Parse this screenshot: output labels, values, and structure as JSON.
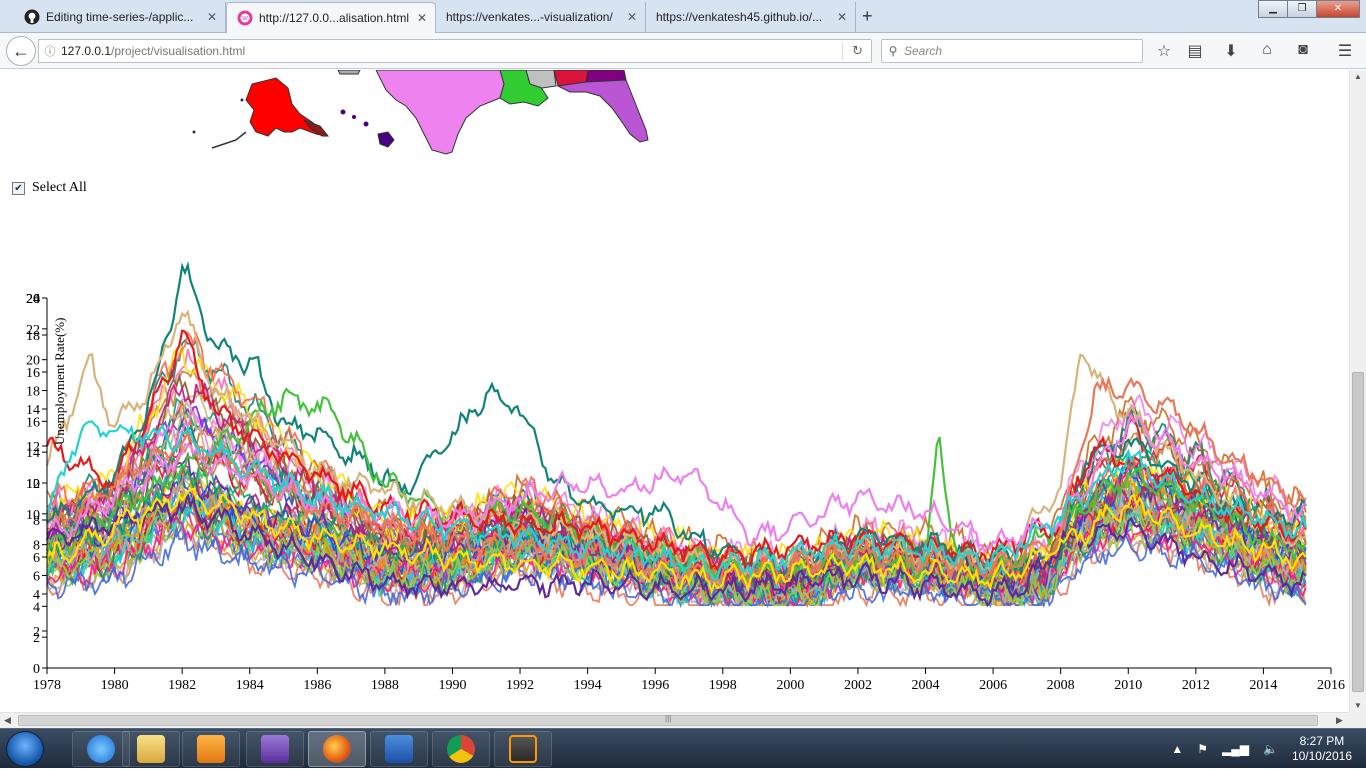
{
  "browser": {
    "tabs": [
      {
        "label": "Editing time-series-/applic...",
        "icon": "github-icon",
        "active": false
      },
      {
        "label": "http://127.0.0...alisation.html",
        "icon": "webstorm-icon",
        "active": true
      },
      {
        "label": "https://venkates...-visualization/",
        "icon": "",
        "active": false
      },
      {
        "label": "https://venkatesh45.github.io/...",
        "icon": "",
        "active": false
      }
    ],
    "new_tab": "+",
    "url_host": "127.0.0.1",
    "url_path": "/project/visualisation.html",
    "search_placeholder": "Search"
  },
  "page": {
    "select_all_label": "Select All",
    "select_all_checked": true
  },
  "chart_data": {
    "type": "line",
    "title": "",
    "ylabel": "Unemployment Rate(%)",
    "xlabel": "",
    "x_range": [
      1978,
      2016
    ],
    "x_ticks": [
      "1978",
      "1980",
      "1982",
      "1984",
      "1986",
      "1988",
      "1990",
      "1992",
      "1994",
      "1996",
      "1998",
      "2000",
      "2002",
      "2004",
      "2006",
      "2008",
      "2010",
      "2012",
      "2014",
      "2016"
    ],
    "y_axes": [
      {
        "ylim": [
          0,
          20
        ],
        "ticks": [
          "0",
          "2",
          "4",
          "6",
          "8",
          "10",
          "12",
          "14",
          "16",
          "18",
          "20"
        ]
      },
      {
        "ylim": [
          0,
          24
        ],
        "ticks": [
          "2",
          "4",
          "6",
          "8",
          "10",
          "12",
          "14",
          "16",
          "18",
          "20",
          "22",
          "24"
        ]
      },
      {
        "ylim": [
          0,
          26
        ],
        "ticks": [
          "26"
        ]
      }
    ],
    "series_count": 50,
    "series_anchors": {
      "x": [
        1978,
        1980,
        1982,
        1984,
        1986,
        1988,
        1990,
        1992,
        1994,
        1996,
        1998,
        2000,
        2002,
        2004,
        2006,
        2007.5,
        2008.5,
        2010,
        2012,
        2014,
        2015.3
      ],
      "profiles": [
        [
          6.0,
          6.8,
          9.6,
          7.6,
          6.8,
          5.4,
          5.6,
          7.0,
          6.0,
          5.2,
          4.5,
          4.2,
          5.6,
          5.4,
          4.6,
          4.6,
          7.4,
          9.2,
          8.0,
          6.0,
          5.2
        ],
        [
          8.0,
          9.4,
          16.2,
          13.2,
          9.8,
          7.0,
          7.4,
          8.8,
          7.2,
          6.4,
          5.4,
          5.0,
          6.6,
          6.0,
          5.0,
          5.0,
          8.2,
          9.8,
          9.0,
          7.6,
          6.6
        ],
        [
          5.0,
          5.6,
          8.2,
          6.8,
          6.0,
          4.8,
          5.0,
          6.2,
          5.6,
          4.8,
          4.2,
          3.8,
          5.2,
          5.0,
          4.4,
          4.4,
          6.6,
          8.0,
          7.0,
          5.2,
          4.6
        ],
        [
          7.0,
          8.0,
          11.2,
          9.4,
          8.4,
          6.6,
          6.4,
          7.8,
          6.8,
          5.8,
          5.0,
          4.6,
          6.0,
          5.8,
          5.0,
          5.0,
          8.8,
          11.8,
          10.2,
          8.0,
          7.0
        ]
      ]
    },
    "series_highlights": [
      {
        "color": "#12837a",
        "x": [
          1978,
          1980,
          1981.2,
          1982,
          1983,
          1984.2,
          1985,
          1986,
          1987.5,
          1988.5,
          1990,
          1991,
          1992,
          1993,
          1994,
          1996,
          1998,
          2000,
          2002,
          2004,
          2006,
          2008,
          2008.7,
          2010,
          2012,
          2014,
          2015.3
        ],
        "y": [
          7.8,
          10.4,
          15.0,
          21.8,
          17.4,
          16.2,
          13.2,
          12.6,
          11.0,
          9.6,
          12.4,
          14.8,
          14.0,
          10.2,
          8.8,
          8.4,
          6.2,
          5.6,
          7.2,
          6.8,
          5.8,
          6.0,
          11.4,
          12.2,
          10.0,
          7.8,
          8.6
        ]
      },
      {
        "color": "#45c13c",
        "x": [
          1978,
          1982,
          1985,
          1986.5,
          1988,
          1990,
          1992,
          1994,
          1996,
          1998,
          2000,
          2002,
          2004,
          2004.4,
          2004.6,
          2005,
          2006,
          2008,
          2010,
          2012,
          2014,
          2015.3
        ],
        "y": [
          6.2,
          10.6,
          14.6,
          13.8,
          10.0,
          8.2,
          8.6,
          7.2,
          6.2,
          5.4,
          5.0,
          6.0,
          5.6,
          12.6,
          9.4,
          5.6,
          5.0,
          7.8,
          10.4,
          9.0,
          7.0,
          6.2
        ]
      },
      {
        "color": "#d8b47c",
        "x": [
          1978,
          1979.3,
          1980,
          1981,
          1982,
          1983,
          1986,
          1990,
          1994,
          1998,
          2002,
          2006,
          2008,
          2008.6,
          2009.5,
          2011,
          2013,
          2015.3
        ],
        "y": [
          11.0,
          16.4,
          13.0,
          15.0,
          19.4,
          15.0,
          10.6,
          8.6,
          7.2,
          5.6,
          6.6,
          5.6,
          9.6,
          17.2,
          14.6,
          12.0,
          9.0,
          6.4
        ]
      },
      {
        "color": "#e41a1c",
        "x": [
          1978,
          1980,
          1981.5,
          1982,
          1983,
          1985,
          1988,
          1991,
          1994,
          1998,
          2002,
          2006,
          2008,
          2009,
          2011,
          2013,
          2015.3
        ],
        "y": [
          12.0,
          10.0,
          15.6,
          18.0,
          13.8,
          11.4,
          8.6,
          8.0,
          7.6,
          6.0,
          7.0,
          6.2,
          8.0,
          12.0,
          10.4,
          8.4,
          7.2
        ]
      },
      {
        "color": "#e8795a",
        "x": [
          1978,
          1982,
          1986,
          1990,
          1994,
          1998,
          2002,
          2006,
          2008,
          2009,
          2010,
          2011,
          2013,
          2015.3
        ],
        "y": [
          7.4,
          12.4,
          8.6,
          6.8,
          6.2,
          5.0,
          6.2,
          5.4,
          7.2,
          14.8,
          15.4,
          14.2,
          11.4,
          8.8
        ]
      },
      {
        "color": "#ee7fee",
        "x": [
          1978,
          1982,
          1986,
          1990,
          1993.5,
          1995,
          1997,
          1999,
          2002,
          2004,
          2006,
          2008,
          2010,
          2012,
          2015.3
        ],
        "y": [
          7.0,
          11.6,
          9.0,
          8.0,
          10.0,
          9.6,
          10.6,
          7.0,
          9.2,
          8.4,
          6.8,
          8.0,
          13.2,
          11.2,
          8.2
        ]
      },
      {
        "color": "#5e2a99",
        "x": [
          1978,
          1982,
          1986,
          1988.5,
          1990,
          1994,
          1998,
          2002,
          2005.8,
          2007,
          2008,
          2010,
          2012,
          2015.3
        ],
        "y": [
          6.8,
          8.8,
          5.8,
          4.4,
          4.4,
          4.6,
          4.2,
          5.0,
          4.0,
          4.6,
          6.8,
          7.6,
          6.0,
          4.4
        ]
      },
      {
        "color": "#ffe000",
        "x": [
          1978,
          1982,
          1986,
          1990,
          1994,
          1998,
          2002,
          2006,
          2008,
          2010,
          2012,
          2015.3
        ],
        "y": [
          5.8,
          9.4,
          7.0,
          6.0,
          5.4,
          4.8,
          5.6,
          4.8,
          6.6,
          8.8,
          7.4,
          5.8
        ]
      },
      {
        "color": "#22d3d3",
        "x": [
          1978,
          1979,
          1982,
          1986,
          1990,
          1994,
          1998,
          2002,
          2006,
          2008,
          2010,
          2012,
          2015.3
        ],
        "y": [
          8.4,
          13.0,
          12.4,
          9.2,
          7.6,
          6.6,
          5.4,
          6.8,
          5.8,
          8.2,
          11.4,
          9.2,
          7.4
        ]
      }
    ]
  },
  "taskbar": {
    "apps": [
      "windows-explorer",
      "internet-explorer",
      "file-explorer",
      "media-player",
      "visual-studio",
      "firefox",
      "word",
      "chrome",
      "sublime-text"
    ],
    "clock_time": "8:27 PM",
    "clock_date": "10/10/2016"
  },
  "colors": {
    "palette": [
      "#e41a1c",
      "#12837a",
      "#45c13c",
      "#d8b47c",
      "#e8795a",
      "#ee7fee",
      "#5e2a99",
      "#ffe000",
      "#22d3d3",
      "#1f4fd8",
      "#ff8c00",
      "#8b5a2b",
      "#ff1493",
      "#00a86b",
      "#b0b0b0",
      "#c71585",
      "#4169e1",
      "#cd853f",
      "#9acd32",
      "#ff6347",
      "#20b2aa",
      "#8a2be2",
      "#daa520",
      "#dc143c",
      "#00bfff",
      "#ff69b4",
      "#2e8b57",
      "#d2691e",
      "#6495ed",
      "#bdb76b"
    ]
  }
}
